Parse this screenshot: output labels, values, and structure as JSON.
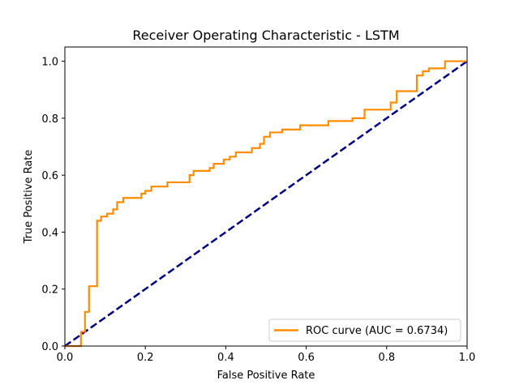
{
  "chart_data": {
    "type": "line",
    "title": "Receiver Operating Characteristic - LSTM",
    "xlabel": "False Positive Rate",
    "ylabel": "True Positive Rate",
    "xlim": [
      0.0,
      1.0
    ],
    "ylim": [
      0.0,
      1.05
    ],
    "xticks": [
      "0.0",
      "0.2",
      "0.4",
      "0.6",
      "0.8",
      "1.0"
    ],
    "yticks": [
      "0.0",
      "0.2",
      "0.4",
      "0.6",
      "0.8",
      "1.0"
    ],
    "grid": false,
    "legend_position": "lower-right",
    "series": [
      {
        "name": "ROC curve (AUC = 0.6734)",
        "color": "#ff8c00",
        "style": "solid",
        "x": [
          0.0,
          0.04,
          0.04,
          0.05,
          0.05,
          0.06,
          0.06,
          0.07,
          0.07,
          0.08,
          0.08,
          0.09,
          0.09,
          0.105,
          0.105,
          0.12,
          0.12,
          0.13,
          0.13,
          0.145,
          0.145,
          0.19,
          0.19,
          0.2,
          0.2,
          0.215,
          0.215,
          0.255,
          0.255,
          0.31,
          0.31,
          0.32,
          0.32,
          0.36,
          0.36,
          0.37,
          0.37,
          0.395,
          0.395,
          0.41,
          0.41,
          0.425,
          0.425,
          0.465,
          0.465,
          0.485,
          0.485,
          0.495,
          0.495,
          0.51,
          0.51,
          0.54,
          0.54,
          0.585,
          0.585,
          0.655,
          0.655,
          0.715,
          0.715,
          0.745,
          0.745,
          0.81,
          0.81,
          0.825,
          0.825,
          0.875,
          0.875,
          0.89,
          0.89,
          0.905,
          0.905,
          0.945,
          0.945,
          1.0
        ],
        "y": [
          0.0,
          0.0,
          0.05,
          0.05,
          0.12,
          0.12,
          0.21,
          0.21,
          0.21,
          0.21,
          0.44,
          0.44,
          0.455,
          0.455,
          0.465,
          0.465,
          0.48,
          0.48,
          0.505,
          0.505,
          0.52,
          0.52,
          0.535,
          0.535,
          0.545,
          0.545,
          0.56,
          0.56,
          0.575,
          0.575,
          0.6,
          0.6,
          0.615,
          0.615,
          0.625,
          0.625,
          0.64,
          0.64,
          0.655,
          0.655,
          0.665,
          0.665,
          0.68,
          0.68,
          0.695,
          0.695,
          0.71,
          0.71,
          0.735,
          0.735,
          0.75,
          0.75,
          0.76,
          0.76,
          0.775,
          0.775,
          0.79,
          0.79,
          0.8,
          0.8,
          0.83,
          0.83,
          0.855,
          0.855,
          0.895,
          0.895,
          0.95,
          0.95,
          0.965,
          0.965,
          0.975,
          0.975,
          1.0,
          1.0
        ]
      },
      {
        "name": "",
        "color": "#000080",
        "style": "dashed",
        "x": [
          0.0,
          1.0
        ],
        "y": [
          0.0,
          1.0
        ]
      }
    ]
  }
}
